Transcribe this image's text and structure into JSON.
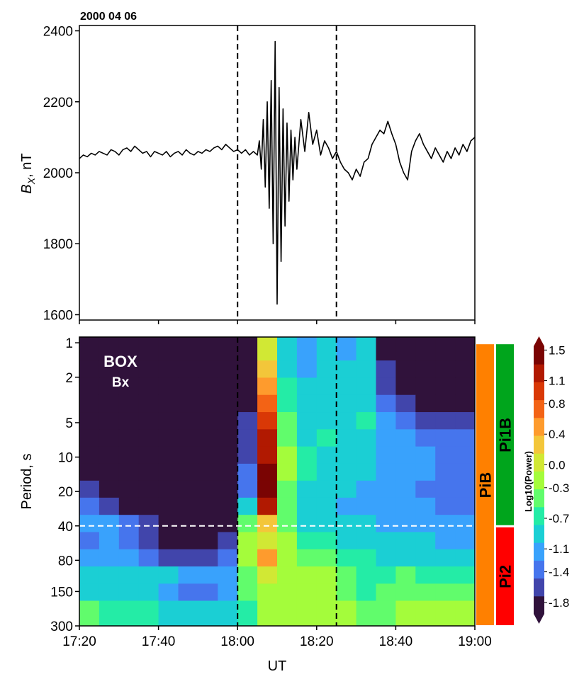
{
  "chart_data": [
    {
      "type": "line",
      "title": "2000 04 06",
      "ylabel": [
        "B",
        "X",
        ", nT"
      ],
      "x": [
        1040,
        1041,
        1042,
        1043,
        1044,
        1045,
        1046,
        1047,
        1048,
        1049,
        1050,
        1051,
        1052,
        1053,
        1054,
        1055,
        1056,
        1057,
        1058,
        1059,
        1060,
        1061,
        1062,
        1063,
        1064,
        1065,
        1066,
        1067,
        1068,
        1069,
        1070,
        1071,
        1072,
        1073,
        1074,
        1075,
        1076,
        1077,
        1078,
        1079,
        1080,
        1081,
        1082,
        1083,
        1084,
        1085,
        1085.5,
        1086,
        1086.5,
        1087,
        1087.5,
        1088,
        1088.5,
        1089,
        1089.5,
        1090,
        1090.5,
        1091,
        1091.5,
        1092,
        1092.5,
        1093,
        1093.5,
        1094,
        1094.5,
        1095,
        1096,
        1097,
        1098,
        1099,
        1100,
        1101,
        1102,
        1103,
        1104,
        1105,
        1106,
        1107,
        1108,
        1109,
        1110,
        1111,
        1112,
        1113,
        1114,
        1115,
        1116,
        1117,
        1118,
        1119,
        1120,
        1121,
        1122,
        1123,
        1124,
        1125,
        1126,
        1127,
        1128,
        1129,
        1130,
        1131,
        1132,
        1133,
        1134,
        1135,
        1136,
        1137,
        1138,
        1139,
        1140
      ],
      "values": [
        2040,
        2050,
        2045,
        2055,
        2050,
        2060,
        2055,
        2050,
        2065,
        2060,
        2050,
        2065,
        2070,
        2060,
        2075,
        2065,
        2055,
        2060,
        2045,
        2060,
        2055,
        2050,
        2060,
        2045,
        2055,
        2060,
        2050,
        2065,
        2055,
        2050,
        2060,
        2055,
        2065,
        2060,
        2070,
        2075,
        2065,
        2080,
        2070,
        2060,
        2065,
        2055,
        2065,
        2050,
        2060,
        2050,
        2090,
        2010,
        2150,
        1960,
        2200,
        1900,
        2260,
        1800,
        2370,
        1630,
        2240,
        1750,
        2180,
        1850,
        2140,
        1920,
        2120,
        1980,
        2100,
        2010,
        2150,
        2060,
        2170,
        2080,
        2120,
        2050,
        2090,
        2070,
        2040,
        2060,
        2030,
        2010,
        2000,
        1980,
        2010,
        1990,
        2030,
        2040,
        2080,
        2100,
        2120,
        2110,
        2145,
        2110,
        2080,
        2030,
        2000,
        1980,
        2060,
        2090,
        2110,
        2080,
        2060,
        2040,
        2070,
        2050,
        2030,
        2060,
        2040,
        2070,
        2050,
        2080,
        2060,
        2090,
        2100
      ],
      "color": "#000000",
      "xlim": [
        1040,
        1140
      ],
      "xticks": [
        1040,
        1060,
        1080,
        1100,
        1120,
        1140
      ],
      "ylim": [
        1585,
        2415
      ],
      "yticks": [
        1600,
        1800,
        2000,
        2200,
        2400
      ],
      "vlines": [
        1080,
        1105
      ]
    },
    {
      "type": "heatmap",
      "annotations": [
        "BOX",
        "Bx"
      ],
      "xlabel": "UT",
      "ylabel": "Period, s",
      "colorbar_label": "Log10(Power)",
      "log_y": true,
      "xlim": [
        1040,
        1140
      ],
      "xticks": [
        {
          "value": 1040,
          "label": "17:20"
        },
        {
          "value": 1060,
          "label": "17:40"
        },
        {
          "value": 1080,
          "label": "18:00"
        },
        {
          "value": 1100,
          "label": "18:20"
        },
        {
          "value": 1120,
          "label": "18:40"
        },
        {
          "value": 1140,
          "label": "19:00"
        }
      ],
      "ylim": [
        0.89,
        300
      ],
      "yticks": [
        1,
        2,
        5,
        10,
        20,
        40,
        80,
        150,
        300
      ],
      "x": [
        1042.5,
        1047.5,
        1052.5,
        1057.5,
        1062.5,
        1067.5,
        1072.5,
        1077.5,
        1082.5,
        1087.5,
        1092.5,
        1097.5,
        1102.5,
        1107.5,
        1112.5,
        1117.5,
        1122.5,
        1127.5,
        1132.5,
        1137.5
      ],
      "y": [
        1.2,
        1.7,
        2.4,
        3.4,
        4.8,
        6.8,
        9.6,
        13.6,
        19,
        27,
        38,
        54,
        76,
        108,
        152,
        215
      ],
      "z": [
        [
          -2,
          -2,
          -2,
          -2,
          -2,
          -2,
          -2,
          -2,
          -1.9,
          0.0,
          -0.9,
          -1.2,
          -1.0,
          -1.1,
          -1.0,
          -1.8,
          -1.9,
          -2,
          -2,
          -2
        ],
        [
          -2,
          -2,
          -2,
          -2,
          -2,
          -2,
          -2,
          -2,
          -1.9,
          0.3,
          -0.8,
          -1.1,
          -0.9,
          -1.0,
          -0.9,
          -1.7,
          -1.9,
          -2,
          -2,
          -2
        ],
        [
          -2,
          -2,
          -2,
          -2,
          -2,
          -2,
          -2,
          -2,
          -1.8,
          0.5,
          -0.7,
          -1.0,
          -0.9,
          -1.0,
          -1.0,
          -1.6,
          -1.8,
          -1.9,
          -2,
          -2
        ],
        [
          -2,
          -2,
          -2,
          -2,
          -2,
          -2,
          -2,
          -2,
          -1.8,
          0.7,
          -0.6,
          -0.9,
          -0.8,
          -0.9,
          -0.9,
          -1.4,
          -1.6,
          -1.8,
          -1.9,
          -1.9
        ],
        [
          -2,
          -2,
          -2,
          -2,
          -2,
          -2,
          -2,
          -2,
          -1.7,
          1.0,
          -0.5,
          -0.8,
          -0.8,
          -0.8,
          -0.7,
          -1.2,
          -1.4,
          -1.5,
          -1.6,
          -1.6
        ],
        [
          -2,
          -2,
          -2,
          -2,
          -2,
          -2,
          -2,
          -2,
          -1.6,
          1.2,
          -0.4,
          -0.8,
          -0.7,
          -0.8,
          -0.8,
          -1.1,
          -1.2,
          -1.3,
          -1.4,
          -1.4
        ],
        [
          -2,
          -2,
          -2,
          -2,
          -2,
          -2,
          -2,
          -2,
          -1.5,
          1.3,
          -0.3,
          -0.7,
          -0.8,
          -0.8,
          -0.9,
          -1.1,
          -1.2,
          -1.2,
          -1.3,
          -1.3
        ],
        [
          -2,
          -2,
          -2,
          -2,
          -2,
          -2,
          -2,
          -2,
          -1.4,
          1.4,
          -0.3,
          -0.7,
          -0.8,
          -0.9,
          -1.0,
          -1.1,
          -1.2,
          -1.2,
          -1.3,
          -1.4
        ],
        [
          -1.6,
          -1.9,
          -2,
          -2,
          -2,
          -2,
          -2,
          -2,
          -1.3,
          1.5,
          -0.4,
          -0.8,
          -0.9,
          -1.0,
          -1.1,
          -1.2,
          -1.2,
          -1.3,
          -1.3,
          -1.4
        ],
        [
          -1.3,
          -1.5,
          -1.8,
          -2,
          -2,
          -2,
          -2,
          -2,
          -1.0,
          1.1,
          -0.5,
          -0.9,
          -1.0,
          -1.1,
          -1.1,
          -1.2,
          -1.2,
          -1.2,
          -1.3,
          -1.3
        ],
        [
          -1.2,
          -1.1,
          -1.4,
          -1.7,
          -1.9,
          -2,
          -2,
          -1.9,
          -0.5,
          0.3,
          -0.5,
          -0.8,
          -0.9,
          -1.0,
          -1.0,
          -1.1,
          -1.1,
          -1.1,
          -1.2,
          -1.2
        ],
        [
          -1.4,
          -1.2,
          -1.3,
          -1.6,
          -1.8,
          -1.9,
          -1.8,
          -1.6,
          -0.3,
          0.0,
          -0.3,
          -0.6,
          -0.6,
          -0.8,
          -0.9,
          -0.9,
          -1.0,
          -1.0,
          -1.1,
          -1.1
        ],
        [
          -1.2,
          -1.1,
          -1.1,
          -1.3,
          -1.5,
          -1.6,
          -1.5,
          -1.3,
          -0.3,
          0.4,
          -0.2,
          -0.4,
          -0.4,
          -0.6,
          -0.7,
          -0.8,
          -0.8,
          -0.8,
          -0.9,
          -0.9
        ],
        [
          -0.9,
          -0.9,
          -0.8,
          -0.9,
          -1.0,
          -1.2,
          -1.2,
          -1.1,
          -0.4,
          0.0,
          -0.2,
          -0.3,
          -0.3,
          -0.5,
          -0.6,
          -0.6,
          -0.5,
          -0.6,
          -0.6,
          -0.6
        ],
        [
          -0.8,
          -0.9,
          -0.9,
          -1.0,
          -1.2,
          -1.3,
          -1.3,
          -1.2,
          -0.5,
          -0.2,
          -0.3,
          -0.3,
          -0.2,
          -0.5,
          -0.6,
          -0.5,
          -0.4,
          -0.5,
          -0.4,
          -0.4
        ],
        [
          -0.5,
          -0.6,
          -0.6,
          -0.7,
          -0.8,
          -0.9,
          -0.9,
          -0.8,
          -0.6,
          -0.3,
          -0.3,
          -0.2,
          -0.2,
          -0.3,
          -0.4,
          -0.4,
          -0.3,
          -0.3,
          -0.2,
          -0.2
        ]
      ],
      "colormap": [
        "#30123b",
        "#4145ab",
        "#4675ed",
        "#39a2fc",
        "#1bcfd4",
        "#24eca6",
        "#61fc6c",
        "#a4fc3b",
        "#d1e834",
        "#f3c63a",
        "#fe9b2d",
        "#f36315",
        "#d93806",
        "#b11901",
        "#7a0403"
      ],
      "clim": [
        -1.95,
        1.55
      ],
      "cticks": [
        1.5,
        1.1,
        0.8,
        0.4,
        {
          "value": 0,
          "label": "0.0"
        },
        -0.3,
        -0.7,
        -1.1,
        -1.4,
        -1.8
      ],
      "vlines": [
        1080,
        1105
      ],
      "hlines": [
        40
      ],
      "bands": [
        {
          "name": "PiB",
          "color": "#ff8000",
          "range": [
            1,
            300
          ]
        },
        {
          "name": "Pi1B",
          "color": "#00a51c",
          "range": [
            1,
            40
          ]
        },
        {
          "name": "Pi2",
          "color": "#ff0000",
          "range": [
            40,
            300
          ]
        }
      ]
    }
  ]
}
